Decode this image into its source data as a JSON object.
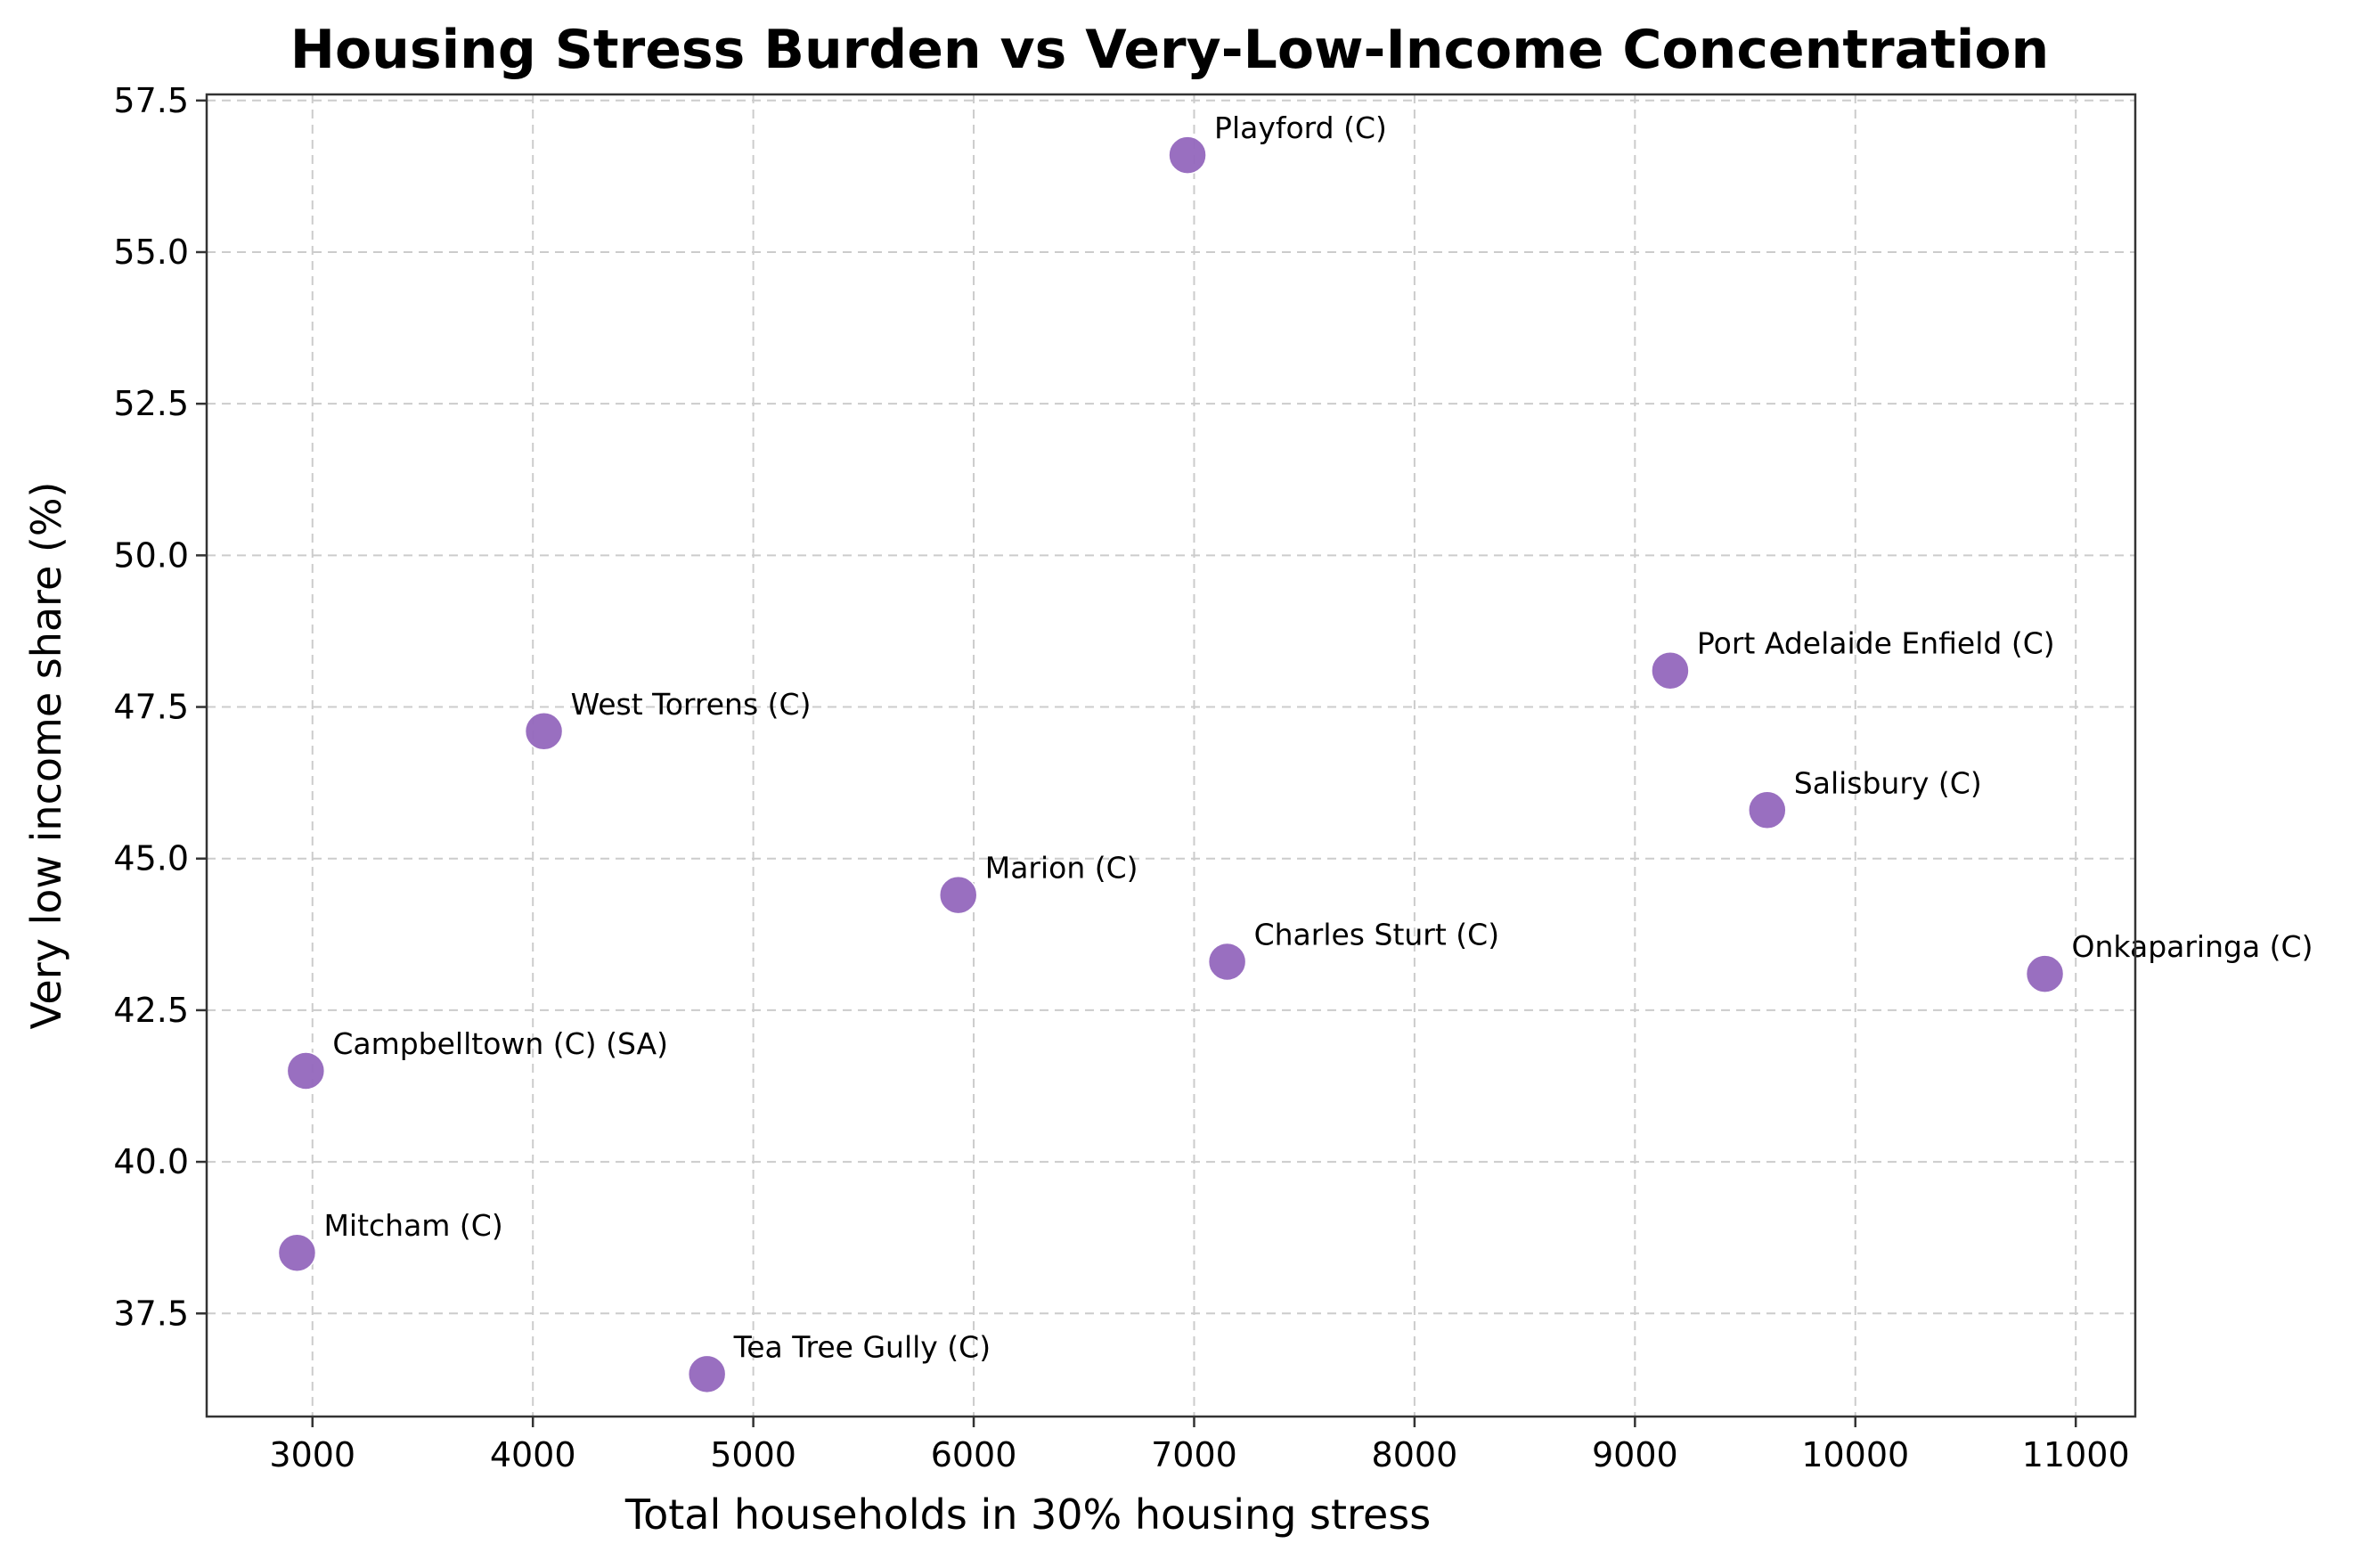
{
  "chart_data": {
    "type": "scatter",
    "title": "Housing Stress Burden vs Very-Low-Income Concentration",
    "xlabel": "Total households in 30% housing stress",
    "ylabel": "Very low income share (%)",
    "xlim": [
      2520,
      11270
    ],
    "ylim": [
      35.8,
      57.6
    ],
    "x_ticks": [
      3000,
      4000,
      5000,
      6000,
      7000,
      8000,
      9000,
      10000,
      11000
    ],
    "y_ticks": [
      37.5,
      40.0,
      42.5,
      45.0,
      47.5,
      50.0,
      52.5,
      55.0,
      57.5
    ],
    "y_tick_labels": [
      "37.5",
      "40.0",
      "42.5",
      "45.0",
      "47.5",
      "50.0",
      "52.5",
      "55.0",
      "57.5"
    ],
    "grid": true,
    "marker_color": "#9467bd",
    "points": [
      {
        "label": "Playford (C)",
        "x": 6970,
        "y": 56.6
      },
      {
        "label": "Port Adelaide Enfield (C)",
        "x": 9160,
        "y": 48.1
      },
      {
        "label": "West Torrens (C)",
        "x": 4050,
        "y": 47.1
      },
      {
        "label": "Salisbury (C)",
        "x": 9600,
        "y": 45.8
      },
      {
        "label": "Marion (C)",
        "x": 5930,
        "y": 44.4
      },
      {
        "label": "Charles Sturt (C)",
        "x": 7150,
        "y": 43.3
      },
      {
        "label": "Onkaparinga (C)",
        "x": 10860,
        "y": 43.1
      },
      {
        "label": "Campbelltown (C) (SA)",
        "x": 2970,
        "y": 41.5
      },
      {
        "label": "Mitcham (C)",
        "x": 2930,
        "y": 38.5
      },
      {
        "label": "Tea Tree Gully (C)",
        "x": 4790,
        "y": 36.5
      }
    ]
  }
}
